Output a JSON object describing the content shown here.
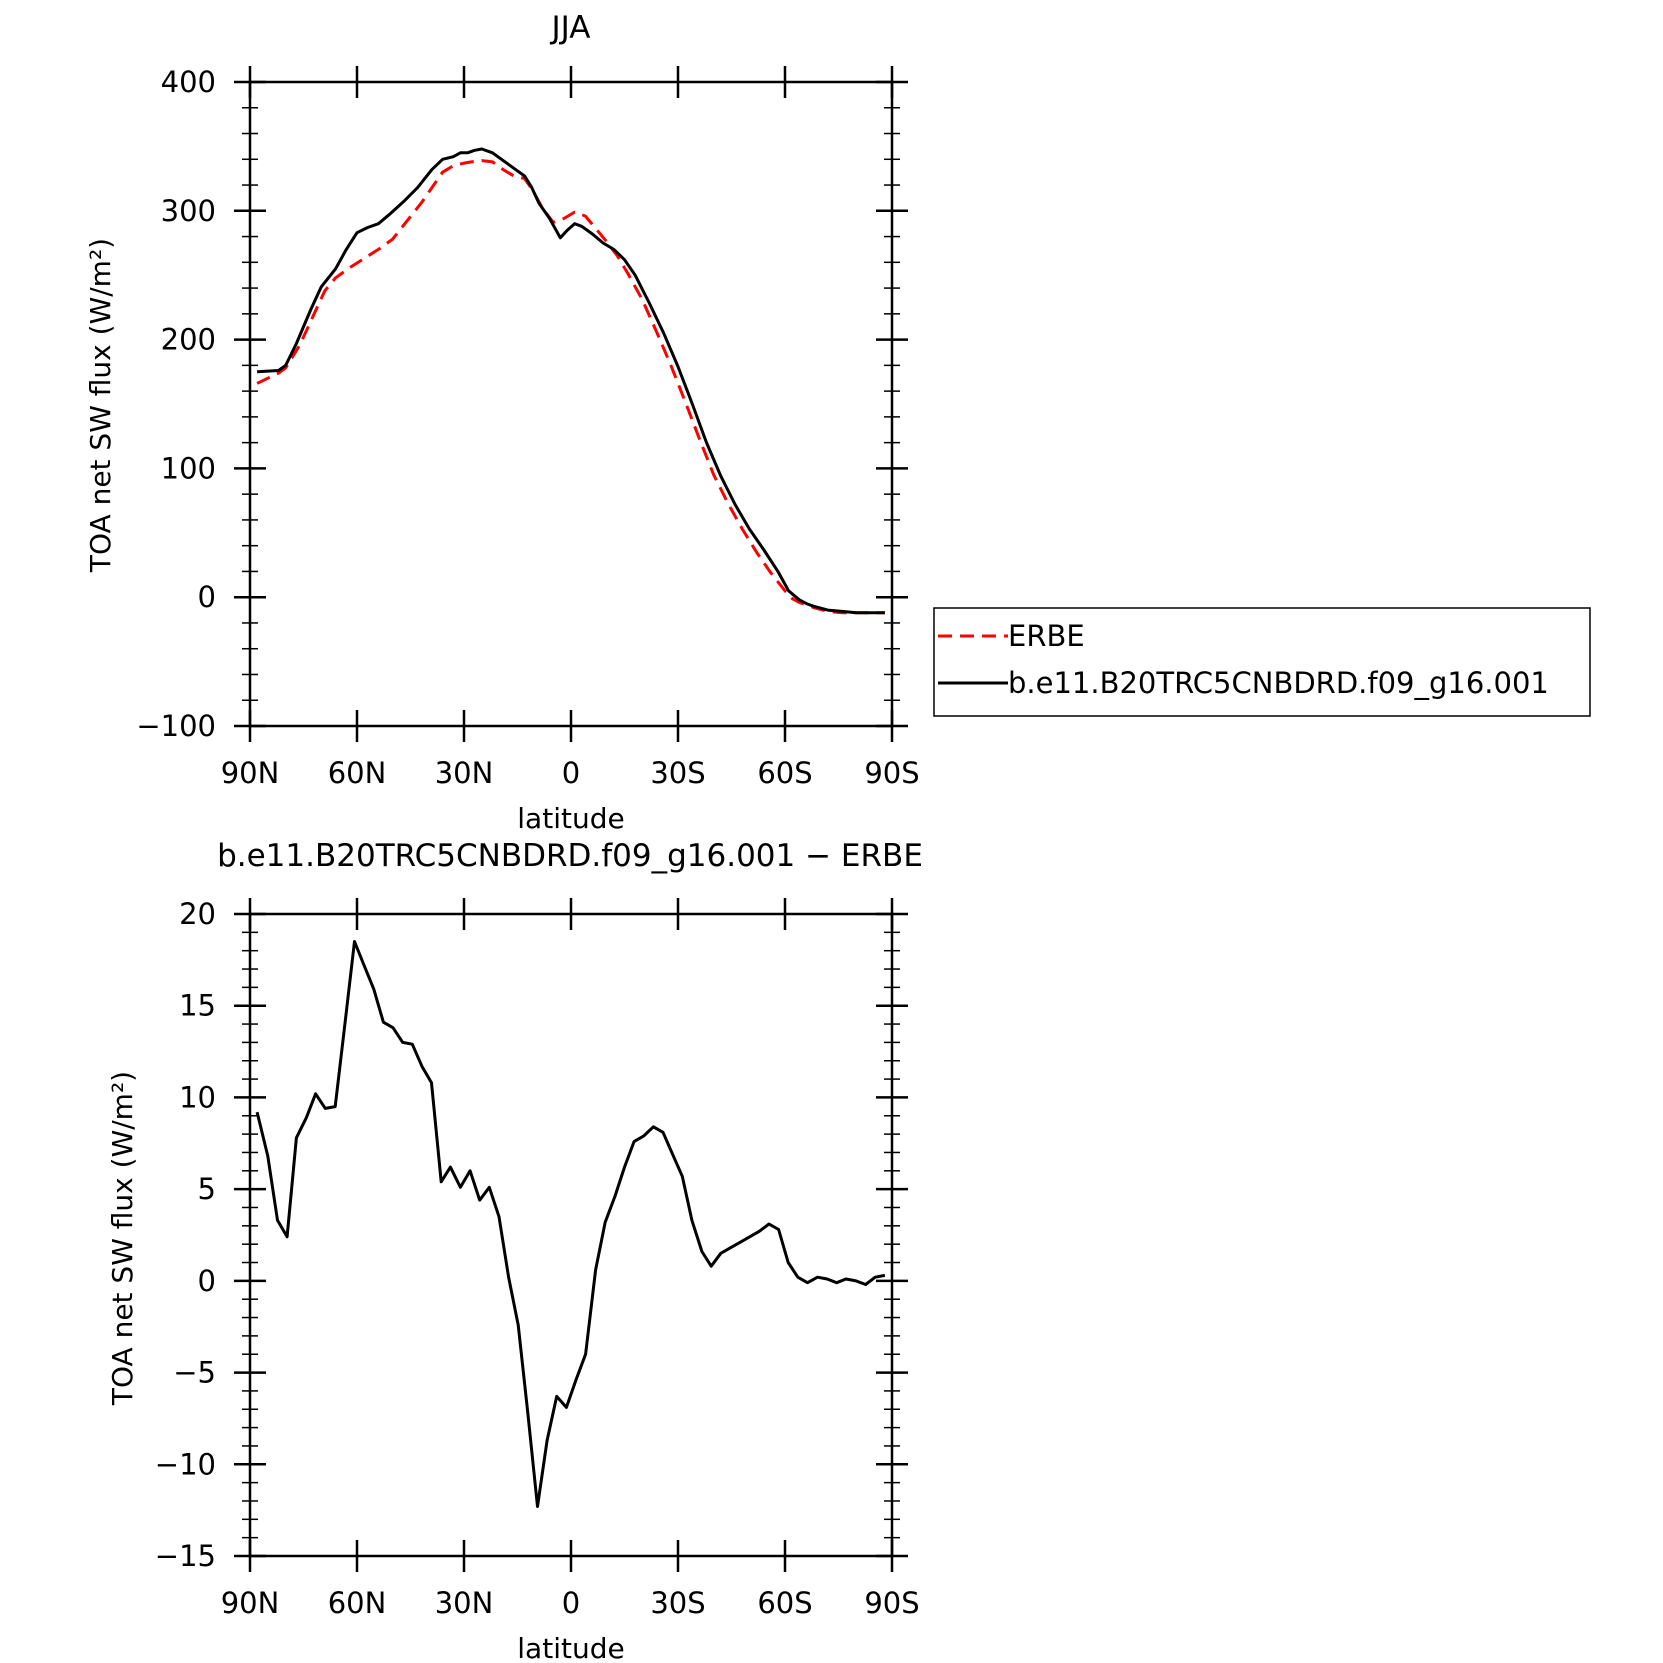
{
  "chart_data": [
    {
      "type": "line",
      "title": "JJA",
      "xlabel": "latitude",
      "ylabel": "TOA net SW flux (W/m²)",
      "xlim": [
        90,
        -90
      ],
      "ylim": [
        -100,
        400
      ],
      "x_ticks": [
        90,
        60,
        30,
        0,
        -30,
        -60,
        -90
      ],
      "x_tick_labels": [
        "90N",
        "60N",
        "30N",
        "0",
        "30S",
        "60S",
        "90S"
      ],
      "y_ticks": [
        400,
        300,
        200,
        100,
        0,
        -100
      ],
      "y_tick_labels": [
        "400",
        "300",
        "200",
        "100",
        "0",
        "−100"
      ],
      "legend": {
        "placement": "right"
      },
      "series": [
        {
          "name": "ERBE",
          "color": "#ff0000",
          "dash": "dashed",
          "x": [
            88,
            82,
            80,
            76,
            72,
            69,
            66,
            62,
            58,
            54,
            50,
            46,
            42,
            38,
            36,
            33,
            30,
            28,
            25,
            22,
            19,
            16,
            13,
            11,
            8,
            5,
            2,
            -1,
            -4,
            -7,
            -10,
            -13,
            -16,
            -20,
            -24,
            -28,
            -32,
            -36,
            -40,
            -44,
            -48,
            -52,
            -56,
            -60,
            -62,
            -64,
            -66,
            -68,
            -72,
            -76,
            -80,
            -84,
            -88
          ],
          "y": [
            166,
            174,
            178,
            196,
            220,
            238,
            248,
            256,
            263,
            270,
            278,
            292,
            306,
            322,
            330,
            335,
            337,
            338,
            339,
            338,
            332,
            327,
            325,
            317,
            302,
            291,
            294,
            299,
            296,
            286,
            276,
            265,
            251,
            231,
            206,
            180,
            152,
            123,
            95,
            73,
            53,
            35,
            19,
            5,
            -1,
            -4,
            -6,
            -8,
            -11,
            -12,
            -12,
            -12,
            -12
          ]
        },
        {
          "name": "b.e11.B20TRC5CNBDRD.f09_g16.001",
          "color": "#000000",
          "dash": "solid",
          "x": [
            88,
            82,
            80,
            77,
            73,
            70,
            66,
            63,
            60,
            57,
            54,
            51,
            47,
            43,
            39,
            36,
            33,
            31,
            29,
            27,
            25,
            22,
            19,
            16,
            13,
            11,
            9,
            6,
            3,
            1,
            -1,
            -3,
            -6,
            -9,
            -12,
            -15,
            -18,
            -22,
            -26,
            -30,
            -34,
            -38,
            -42,
            -46,
            -50,
            -54,
            -58,
            -61,
            -64,
            -66,
            -68,
            -72,
            -76,
            -80,
            -84,
            -88
          ],
          "y": [
            175,
            176,
            180,
            197,
            223,
            241,
            255,
            270,
            283,
            287,
            290,
            297,
            307,
            318,
            332,
            340,
            342,
            345,
            345,
            347,
            348,
            345,
            339,
            333,
            327,
            318,
            306,
            294,
            279,
            285,
            290,
            288,
            282,
            275,
            270,
            262,
            250,
            228,
            205,
            179,
            150,
            120,
            94,
            72,
            53,
            37,
            20,
            5,
            -2,
            -5,
            -7,
            -10,
            -11,
            -12,
            -12,
            -12
          ]
        }
      ]
    },
    {
      "type": "line",
      "title": "b.e11.B20TRC5CNBDRD.f09_g16.001 − ERBE",
      "xlabel": "latitude",
      "ylabel": "TOA net SW flux (W/m²)",
      "xlim": [
        90,
        -90
      ],
      "ylim": [
        -15,
        20
      ],
      "x_ticks": [
        90,
        60,
        30,
        0,
        -30,
        -60,
        -90
      ],
      "x_tick_labels": [
        "90N",
        "60N",
        "30N",
        "0",
        "30S",
        "60S",
        "90S"
      ],
      "y_ticks": [
        20,
        15,
        10,
        5,
        0,
        -5,
        -10,
        -15
      ],
      "y_tick_labels": [
        "20",
        "15",
        "10",
        "5",
        "0",
        "−5",
        "−10",
        "−15"
      ],
      "series": [
        {
          "color": "#000000",
          "dash": "solid",
          "x": [
            88.0,
            85.0,
            82.3,
            79.6,
            77.0,
            74.2,
            71.6,
            68.9,
            66.1,
            63.4,
            60.7,
            58.0,
            55.3,
            52.6,
            49.9,
            47.2,
            44.5,
            41.8,
            39.1,
            36.4,
            33.8,
            31.0,
            28.3,
            25.6,
            22.9,
            20.2,
            17.5,
            14.8,
            12.1,
            9.4,
            6.7,
            4.0,
            1.3,
            -1.4,
            -4.1,
            -6.9,
            -9.6,
            -12.3,
            -15.0,
            -17.7,
            -20.4,
            -23.1,
            -25.8,
            -28.5,
            -31.2,
            -33.9,
            -36.7,
            -39.3,
            -42.0,
            -44.7,
            -47.4,
            -50.1,
            -52.8,
            -55.5,
            -58.2,
            -60.9,
            -63.6,
            -66.3,
            -69.1,
            -71.8,
            -74.5,
            -77.1,
            -79.9,
            -82.6,
            -85.3,
            -88.0
          ],
          "y": [
            9.2,
            6.8,
            3.3,
            2.4,
            7.8,
            8.9,
            10.2,
            9.4,
            9.5,
            14.0,
            18.5,
            17.2,
            15.9,
            14.1,
            13.8,
            13.0,
            12.9,
            11.7,
            10.8,
            5.4,
            6.2,
            5.1,
            6.0,
            4.4,
            5.1,
            3.5,
            0.2,
            -2.4,
            -7.2,
            -12.3,
            -8.7,
            -6.3,
            -6.9,
            -5.4,
            -4.0,
            0.6,
            3.2,
            4.6,
            6.2,
            7.6,
            7.9,
            8.4,
            8.1,
            6.9,
            5.7,
            3.3,
            1.6,
            0.8,
            1.5,
            1.8,
            2.1,
            2.4,
            2.7,
            3.1,
            2.8,
            1.0,
            0.2,
            -0.1,
            0.2,
            0.1,
            -0.1,
            0.1,
            0.0,
            -0.2,
            0.2,
            0.3
          ]
        }
      ]
    }
  ]
}
